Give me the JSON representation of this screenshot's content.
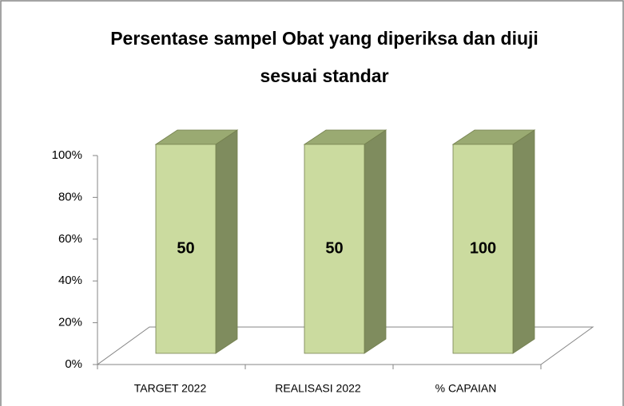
{
  "chart_data": {
    "type": "bar",
    "stacked_percent": true,
    "title": [
      "Persentase sampel Obat yang diperiksa dan diuji",
      "sesuai standar"
    ],
    "categories": [
      "TARGET 2022",
      "REALISASI 2022",
      "% CAPAIAN"
    ],
    "values": [
      50,
      50,
      100
    ],
    "value_labels": [
      "50",
      "50",
      "100"
    ],
    "color": "#cbdb9f",
    "ylim": [
      0,
      100
    ],
    "yticks": [
      {
        "value": 0,
        "label": "0%"
      },
      {
        "value": 20,
        "label": "20%"
      },
      {
        "value": 40,
        "label": "40%"
      },
      {
        "value": 60,
        "label": "60%"
      },
      {
        "value": 80,
        "label": "80%"
      },
      {
        "value": 100,
        "label": "100%"
      }
    ]
  }
}
